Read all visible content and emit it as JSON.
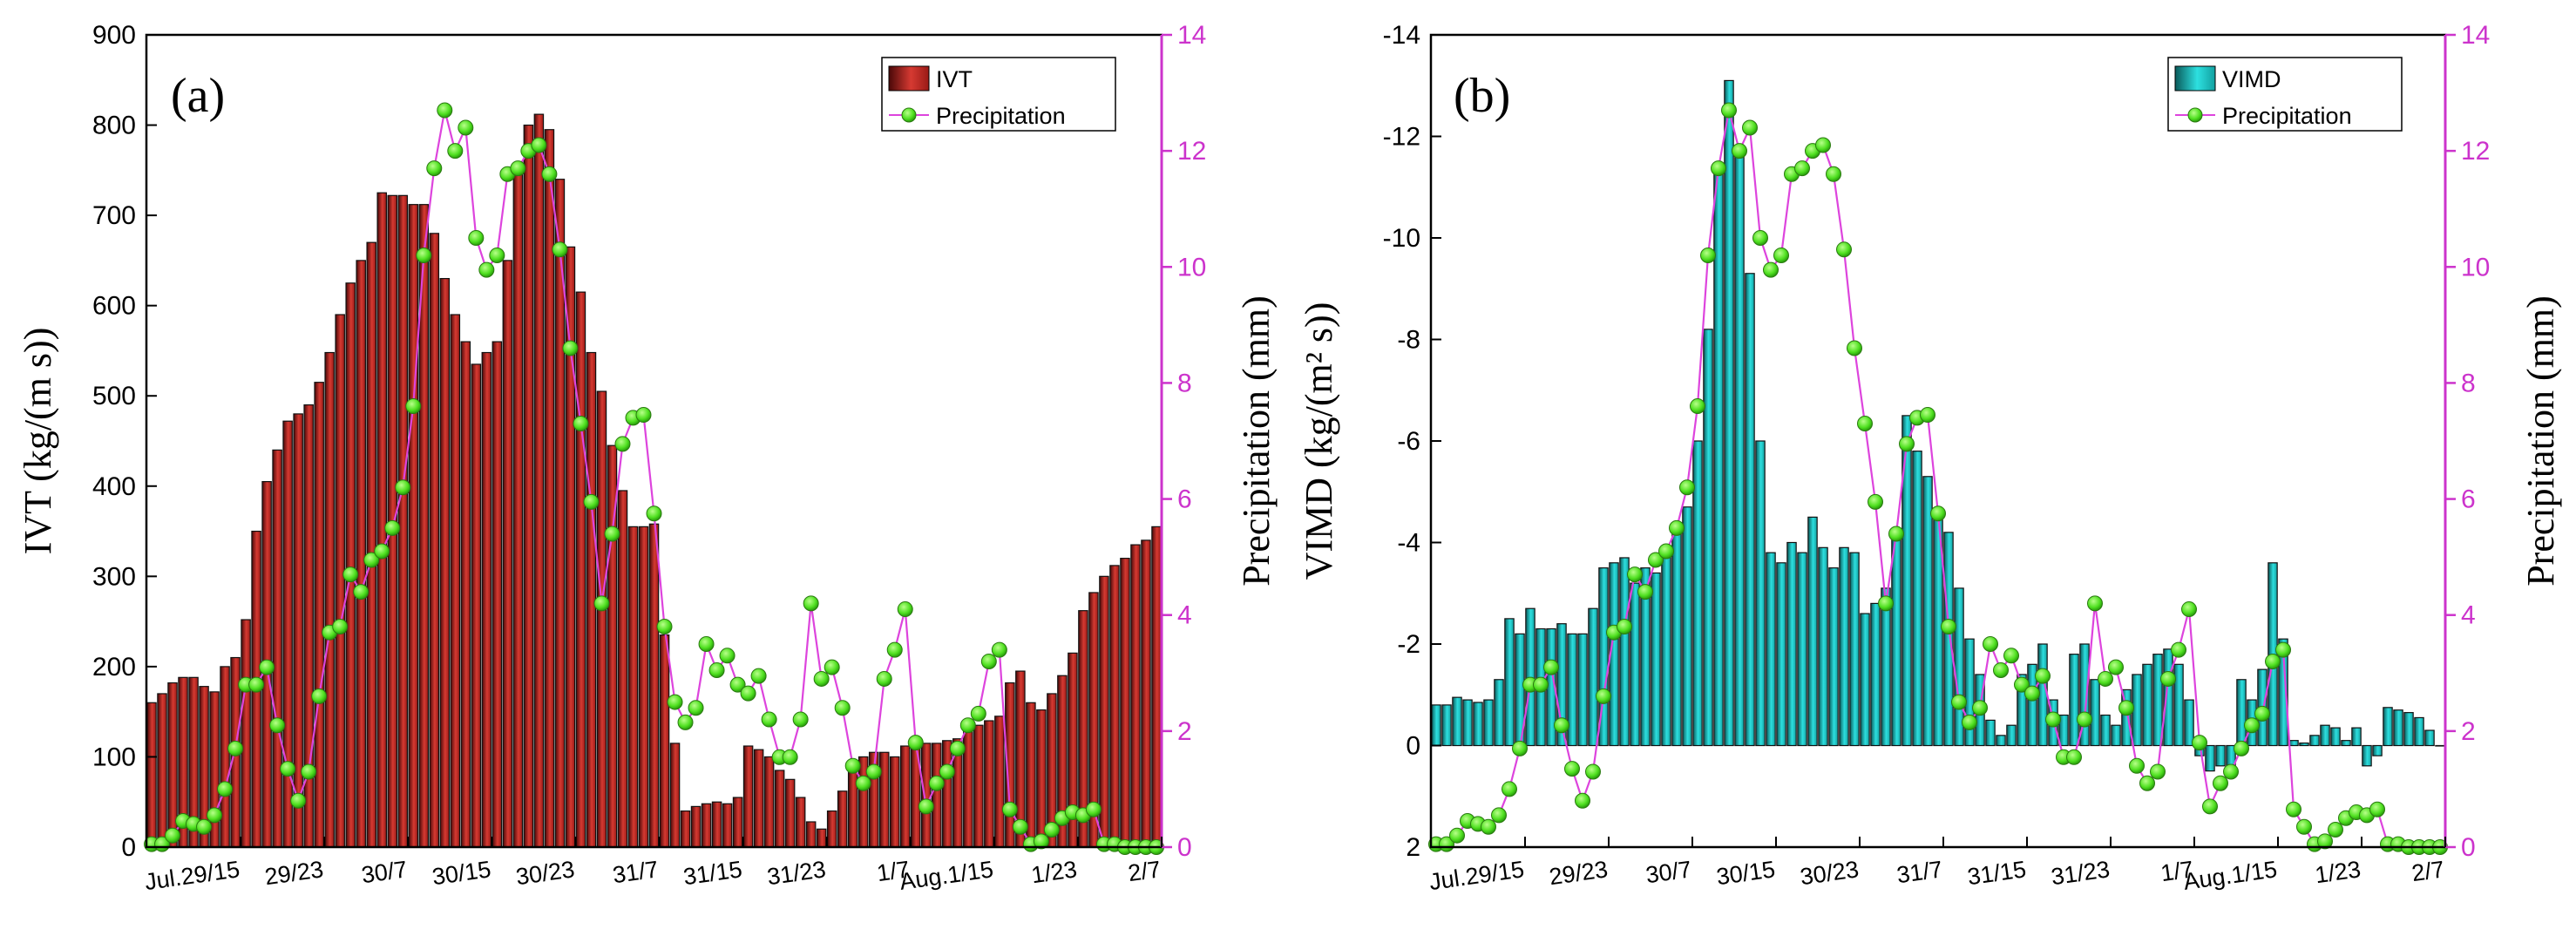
{
  "colors": {
    "ivt_bar": "#d63a32",
    "ivt_bar_dark": "#3a0606",
    "vimd_bar": "#27d8d8",
    "vimd_bar_dark": "#064848",
    "precip_line": "#dd44dd",
    "precip_marker": "#5ef226",
    "right_axis": "#cc33cc"
  },
  "chart_data": [
    {
      "type": "bar",
      "panel_label": "(a)",
      "ylabel": "IVT (kg/(m s))",
      "ylabel_right": "Precipitation (mm)",
      "ylim": [
        0,
        900
      ],
      "yticks": [
        "0",
        "100",
        "200",
        "300",
        "400",
        "500",
        "600",
        "700",
        "800",
        "900"
      ],
      "ylim_right": [
        0,
        14
      ],
      "yticks_right": [
        "0",
        "2",
        "4",
        "6",
        "8",
        "10",
        "12",
        "14"
      ],
      "xticks": [
        "Jul.29/15",
        "29/23",
        "30/7",
        "30/15",
        "30/23",
        "31/7",
        "31/15",
        "31/23",
        "1/7",
        "Aug.1/15",
        "1/23",
        "2/7"
      ],
      "xtick_positions": [
        8,
        16,
        24,
        32,
        40,
        48,
        56,
        64,
        72,
        80,
        88,
        96
      ],
      "legend": [
        "IVT",
        "Precipitation"
      ],
      "legend_position": "top-right",
      "bar_series": {
        "name": "IVT",
        "x": [
          0,
          1,
          2,
          3,
          4,
          5,
          6,
          7,
          8,
          9,
          10,
          11,
          12,
          13,
          14,
          15,
          16,
          17,
          18,
          19,
          20,
          21,
          22,
          23,
          24,
          25,
          26,
          27,
          28,
          29,
          30,
          31,
          32,
          33,
          34,
          35,
          36,
          37,
          38,
          39,
          40,
          41,
          42,
          43,
          44,
          45,
          46,
          47,
          48,
          49,
          50,
          51,
          52,
          53,
          54,
          55,
          56,
          57,
          58,
          59,
          60,
          61,
          62,
          63,
          64,
          65,
          66,
          67,
          68,
          69,
          70,
          71,
          72,
          73,
          74,
          75,
          76,
          77,
          78,
          79,
          80,
          81,
          82,
          83,
          84,
          85,
          86,
          87,
          88,
          89,
          90,
          91,
          92,
          93,
          94,
          95,
          96
        ],
        "values": [
          160,
          170,
          182,
          188,
          188,
          178,
          172,
          200,
          210,
          252,
          350,
          405,
          440,
          472,
          480,
          490,
          515,
          548,
          590,
          625,
          650,
          670,
          725,
          722,
          722,
          712,
          712,
          680,
          630,
          590,
          560,
          535,
          548,
          560,
          650,
          745,
          800,
          812,
          795,
          740,
          665,
          615,
          548,
          505,
          445,
          395,
          355,
          355,
          358,
          235,
          115,
          40,
          45,
          48,
          50,
          48,
          55,
          112,
          108,
          100,
          85,
          75,
          55,
          28,
          20,
          40,
          62,
          85,
          100,
          105,
          105,
          100,
          112,
          112,
          115,
          115,
          118,
          120,
          128,
          135,
          140,
          145,
          182,
          195,
          160,
          152,
          170,
          190,
          215,
          262,
          282,
          300,
          312,
          320,
          335,
          340,
          355
        ]
      },
      "line_series": {
        "name": "Precipitation",
        "x": [
          0,
          1,
          2,
          3,
          4,
          5,
          6,
          7,
          8,
          9,
          10,
          11,
          12,
          13,
          14,
          15,
          16,
          17,
          18,
          19,
          20,
          21,
          22,
          23,
          24,
          25,
          26,
          27,
          28,
          29,
          30,
          31,
          32,
          33,
          34,
          35,
          36,
          37,
          38,
          39,
          40,
          41,
          42,
          43,
          44,
          45,
          46,
          47,
          48,
          49,
          50,
          51,
          52,
          53,
          54,
          55,
          56,
          57,
          58,
          59,
          60,
          61,
          62,
          63,
          64,
          65,
          66,
          67,
          68,
          69,
          70,
          71,
          72,
          73,
          74,
          75,
          76,
          77,
          78,
          79,
          80,
          81,
          82,
          83,
          84,
          85,
          86,
          87,
          88,
          89,
          90,
          91,
          92,
          93,
          94,
          95,
          96
        ],
        "values": [
          0.05,
          0.05,
          0.2,
          0.45,
          0.4,
          0.35,
          0.55,
          1.0,
          1.7,
          2.8,
          2.8,
          3.1,
          2.1,
          1.35,
          0.8,
          1.3,
          2.6,
          3.7,
          3.8,
          4.7,
          4.4,
          4.95,
          5.1,
          5.5,
          6.2,
          7.6,
          10.2,
          11.7,
          12.7,
          12.0,
          12.4,
          10.5,
          9.95,
          10.2,
          11.6,
          11.7,
          12.0,
          12.1,
          11.6,
          10.3,
          8.6,
          7.3,
          5.95,
          4.2,
          5.4,
          6.95,
          7.4,
          7.45,
          5.75,
          3.8,
          2.5,
          2.15,
          2.4,
          3.5,
          3.05,
          3.3,
          2.8,
          2.65,
          2.95,
          2.2,
          1.55,
          1.55,
          2.2,
          4.2,
          2.9,
          3.1,
          2.4,
          1.4,
          1.1,
          1.3,
          2.9,
          3.4,
          4.1,
          1.8,
          0.7,
          1.1,
          1.3,
          1.7,
          2.1,
          2.3,
          3.2,
          3.4,
          0.65,
          0.35,
          0.05,
          0.1,
          0.3,
          0.5,
          0.6,
          0.55,
          0.65,
          0.05,
          0.05,
          0.0,
          0.0,
          0.0,
          0.0
        ]
      }
    },
    {
      "type": "bar",
      "panel_label": "(b)",
      "ylabel": "VIMD (kg/(m² s))",
      "ylabel_right": "Precipitation (mm)",
      "ylim": [
        2,
        -14
      ],
      "yticks": [
        "2",
        "0",
        "-2",
        "-4",
        "-6",
        "-8",
        "-10",
        "-12",
        "-14"
      ],
      "ylim_right": [
        0,
        14
      ],
      "yticks_right": [
        "0",
        "2",
        "4",
        "6",
        "8",
        "10",
        "12",
        "14"
      ],
      "xticks": [
        "Jul.29/15",
        "29/23",
        "30/7",
        "30/15",
        "30/23",
        "31/7",
        "31/15",
        "31/23",
        "1/7",
        "Aug.1/15",
        "1/23",
        "2/7"
      ],
      "xtick_positions": [
        8,
        16,
        24,
        32,
        40,
        48,
        56,
        64,
        72,
        80,
        88,
        96
      ],
      "legend": [
        "VIMD",
        "Precipitation"
      ],
      "legend_position": "top-right",
      "bar_series": {
        "name": "VIMD",
        "x": [
          0,
          1,
          2,
          3,
          4,
          5,
          6,
          7,
          8,
          9,
          10,
          11,
          12,
          13,
          14,
          15,
          16,
          17,
          18,
          19,
          20,
          21,
          22,
          23,
          24,
          25,
          26,
          27,
          28,
          29,
          30,
          31,
          32,
          33,
          34,
          35,
          36,
          37,
          38,
          39,
          40,
          41,
          42,
          43,
          44,
          45,
          46,
          47,
          48,
          49,
          50,
          51,
          52,
          53,
          54,
          55,
          56,
          57,
          58,
          59,
          60,
          61,
          62,
          63,
          64,
          65,
          66,
          67,
          68,
          69,
          70,
          71,
          72,
          73,
          74,
          75,
          76,
          77,
          78,
          79,
          80,
          81,
          82,
          83,
          84,
          85,
          86,
          87,
          88,
          89,
          90,
          91,
          92,
          93,
          94,
          95,
          96
        ],
        "values": [
          -0.8,
          -0.8,
          -0.95,
          -0.9,
          -0.85,
          -0.9,
          -1.3,
          -2.5,
          -2.2,
          -2.7,
          -2.3,
          -2.3,
          -2.4,
          -2.2,
          -2.2,
          -2.7,
          -3.5,
          -3.6,
          -3.7,
          -3.2,
          -3.5,
          -3.4,
          -3.85,
          -4.3,
          -4.7,
          -6.0,
          -8.2,
          -11.3,
          -13.1,
          -11.8,
          -9.3,
          -6.0,
          -3.8,
          -3.6,
          -4.0,
          -3.8,
          -4.5,
          -3.9,
          -3.5,
          -3.9,
          -3.8,
          -2.6,
          -2.8,
          -3.1,
          -4.2,
          -6.5,
          -5.8,
          -5.3,
          -4.6,
          -4.2,
          -3.1,
          -2.1,
          -1.4,
          -0.5,
          -0.2,
          -0.4,
          -1.4,
          -1.6,
          -2.0,
          -0.9,
          -0.6,
          -1.8,
          -2.0,
          -1.3,
          -0.6,
          -0.4,
          -1.1,
          -1.4,
          -1.6,
          -1.8,
          -1.9,
          -1.6,
          -0.9,
          0.2,
          0.5,
          0.4,
          0.4,
          -1.3,
          -0.9,
          -1.5,
          -3.6,
          -2.1,
          -0.1,
          -0.05,
          -0.2,
          -0.4,
          -0.35,
          -0.1,
          -0.35,
          0.4,
          0.2,
          -0.75,
          -0.7,
          -0.65,
          -0.55,
          -0.3,
          0.0
        ]
      },
      "line_series": {
        "name": "Precipitation",
        "x": [
          0,
          1,
          2,
          3,
          4,
          5,
          6,
          7,
          8,
          9,
          10,
          11,
          12,
          13,
          14,
          15,
          16,
          17,
          18,
          19,
          20,
          21,
          22,
          23,
          24,
          25,
          26,
          27,
          28,
          29,
          30,
          31,
          32,
          33,
          34,
          35,
          36,
          37,
          38,
          39,
          40,
          41,
          42,
          43,
          44,
          45,
          46,
          47,
          48,
          49,
          50,
          51,
          52,
          53,
          54,
          55,
          56,
          57,
          58,
          59,
          60,
          61,
          62,
          63,
          64,
          65,
          66,
          67,
          68,
          69,
          70,
          71,
          72,
          73,
          74,
          75,
          76,
          77,
          78,
          79,
          80,
          81,
          82,
          83,
          84,
          85,
          86,
          87,
          88,
          89,
          90,
          91,
          92,
          93,
          94,
          95,
          96
        ],
        "values": [
          0.05,
          0.05,
          0.2,
          0.45,
          0.4,
          0.35,
          0.55,
          1.0,
          1.7,
          2.8,
          2.8,
          3.1,
          2.1,
          1.35,
          0.8,
          1.3,
          2.6,
          3.7,
          3.8,
          4.7,
          4.4,
          4.95,
          5.1,
          5.5,
          6.2,
          7.6,
          10.2,
          11.7,
          12.7,
          12.0,
          12.4,
          10.5,
          9.95,
          10.2,
          11.6,
          11.7,
          12.0,
          12.1,
          11.6,
          10.3,
          8.6,
          7.3,
          5.95,
          4.2,
          5.4,
          6.95,
          7.4,
          7.45,
          5.75,
          3.8,
          2.5,
          2.15,
          2.4,
          3.5,
          3.05,
          3.3,
          2.8,
          2.65,
          2.95,
          2.2,
          1.55,
          1.55,
          2.2,
          4.2,
          2.9,
          3.1,
          2.4,
          1.4,
          1.1,
          1.3,
          2.9,
          3.4,
          4.1,
          1.8,
          0.7,
          1.1,
          1.3,
          1.7,
          2.1,
          2.3,
          3.2,
          3.4,
          0.65,
          0.35,
          0.05,
          0.1,
          0.3,
          0.5,
          0.6,
          0.55,
          0.65,
          0.05,
          0.05,
          0.0,
          0.0,
          0.0,
          0.0
        ]
      }
    }
  ]
}
